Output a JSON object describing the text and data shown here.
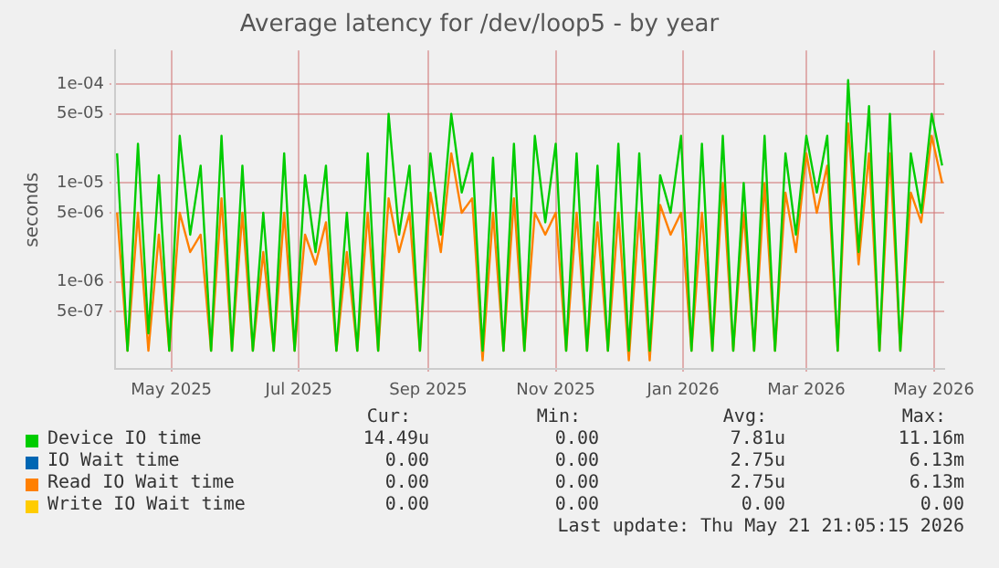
{
  "chart_data": {
    "type": "line",
    "title": "Average latency for /dev/loop5 - by year",
    "ylabel": "seconds",
    "log": "y",
    "grid": true,
    "legend": "bottom",
    "marker": "none",
    "line_style": "solid",
    "ylim": [
      1.3e-07,
      0.00022
    ],
    "yticks": [
      {
        "value": 5e-07,
        "label": "5e-07"
      },
      {
        "value": 1e-06,
        "label": "1e-06"
      },
      {
        "value": 5e-06,
        "label": "5e-06"
      },
      {
        "value": 1e-05,
        "label": "1e-05"
      },
      {
        "value": 5e-05,
        "label": "5e-05"
      },
      {
        "value": 0.0001,
        "label": "1e-04"
      }
    ],
    "xlim": [
      "2025-04-04",
      "2026-05-06"
    ],
    "xticks": [
      {
        "value": "2025-05-01",
        "label": "May 2025"
      },
      {
        "value": "2025-07-01",
        "label": "Jul 2025"
      },
      {
        "value": "2025-09-01",
        "label": "Sep 2025"
      },
      {
        "value": "2025-11-01",
        "label": "Nov 2025"
      },
      {
        "value": "2026-01-01",
        "label": "Jan 2026"
      },
      {
        "value": "2026-03-01",
        "label": "Mar 2026"
      },
      {
        "value": "2026-05-01",
        "label": "May 2026"
      }
    ],
    "x": [
      "2025-04-05",
      "2025-04-10",
      "2025-04-15",
      "2025-04-20",
      "2025-04-25",
      "2025-04-30",
      "2025-05-05",
      "2025-05-10",
      "2025-05-15",
      "2025-05-20",
      "2025-05-25",
      "2025-05-30",
      "2025-06-04",
      "2025-06-09",
      "2025-06-14",
      "2025-06-19",
      "2025-06-24",
      "2025-06-29",
      "2025-07-04",
      "2025-07-09",
      "2025-07-14",
      "2025-07-19",
      "2025-07-24",
      "2025-07-29",
      "2025-08-03",
      "2025-08-08",
      "2025-08-13",
      "2025-08-18",
      "2025-08-23",
      "2025-08-28",
      "2025-09-02",
      "2025-09-07",
      "2025-09-12",
      "2025-09-17",
      "2025-09-22",
      "2025-09-27",
      "2025-10-02",
      "2025-10-07",
      "2025-10-12",
      "2025-10-17",
      "2025-10-22",
      "2025-10-27",
      "2025-11-01",
      "2025-11-06",
      "2025-11-11",
      "2025-11-16",
      "2025-11-21",
      "2025-11-26",
      "2025-12-01",
      "2025-12-06",
      "2025-12-11",
      "2025-12-16",
      "2025-12-21",
      "2025-12-26",
      "2025-12-31",
      "2026-01-05",
      "2026-01-10",
      "2026-01-15",
      "2026-01-20",
      "2026-01-25",
      "2026-01-30",
      "2026-02-04",
      "2026-02-09",
      "2026-02-14",
      "2026-02-19",
      "2026-02-24",
      "2026-03-01",
      "2026-03-06",
      "2026-03-11",
      "2026-03-16",
      "2026-03-21",
      "2026-03-26",
      "2026-03-31",
      "2026-04-05",
      "2026-04-10",
      "2026-04-15",
      "2026-04-20",
      "2026-04-25",
      "2026-04-30",
      "2026-05-05"
    ],
    "series": [
      {
        "name": "Device IO time",
        "color": "#00cc00",
        "values": [
          2e-05,
          2e-07,
          2.5e-05,
          3e-07,
          1.2e-05,
          2e-07,
          3e-05,
          3e-06,
          1.5e-05,
          2e-07,
          3e-05,
          2e-07,
          1.5e-05,
          2e-07,
          5e-06,
          2e-07,
          2e-05,
          2e-07,
          1.2e-05,
          2e-06,
          1.5e-05,
          2e-07,
          5e-06,
          2e-07,
          2e-05,
          2e-07,
          5e-05,
          3e-06,
          1.5e-05,
          2e-07,
          2e-05,
          3e-06,
          5e-05,
          8e-06,
          2e-05,
          2e-07,
          1.8e-05,
          2e-07,
          2.5e-05,
          2e-07,
          3e-05,
          4e-06,
          2.5e-05,
          2e-07,
          2e-05,
          2e-07,
          1.5e-05,
          2e-07,
          2.5e-05,
          2e-07,
          2e-05,
          2e-07,
          1.2e-05,
          5e-06,
          3e-05,
          2e-07,
          2.5e-05,
          2e-07,
          3e-05,
          2e-07,
          1e-05,
          2e-07,
          3e-05,
          2e-07,
          2e-05,
          3e-06,
          3e-05,
          8e-06,
          3e-05,
          2e-07,
          0.00011,
          2e-06,
          6e-05,
          2e-07,
          5e-05,
          2e-07,
          2e-05,
          5e-06,
          5e-05,
          1.5e-05
        ]
      },
      {
        "name": "IO Wait time",
        "color": "#0066b3",
        "values": [
          null,
          null,
          null,
          null,
          null,
          null,
          null,
          null,
          null,
          null,
          null,
          null,
          null,
          null,
          null,
          null,
          null,
          null,
          null,
          null,
          null,
          null,
          null,
          null,
          null,
          null,
          null,
          null,
          null,
          null,
          null,
          null,
          null,
          null,
          null,
          null,
          null,
          null,
          null,
          null,
          null,
          null,
          null,
          null,
          null,
          null,
          null,
          null,
          null,
          null,
          null,
          null,
          null,
          null,
          null,
          null,
          null,
          null,
          null,
          null,
          null,
          null,
          null,
          null,
          null,
          null,
          null,
          null,
          null,
          null,
          null,
          null,
          null,
          null,
          null,
          null,
          null,
          null,
          null,
          null
        ]
      },
      {
        "name": "Read IO Wait time",
        "color": "#ff8000",
        "values": [
          5e-06,
          2e-07,
          5e-06,
          2e-07,
          3e-06,
          2e-07,
          5e-06,
          2e-06,
          3e-06,
          2e-07,
          7e-06,
          2e-07,
          5e-06,
          2e-07,
          2e-06,
          2e-07,
          5e-06,
          2e-07,
          3e-06,
          1.5e-06,
          4e-06,
          2e-07,
          2e-06,
          2e-07,
          5e-06,
          2e-07,
          7e-06,
          2e-06,
          5e-06,
          2e-07,
          8e-06,
          2e-06,
          2e-05,
          5e-06,
          7e-06,
          1.6e-07,
          5e-06,
          2e-07,
          7e-06,
          2e-07,
          5e-06,
          3e-06,
          5e-06,
          2e-07,
          5e-06,
          2e-07,
          4e-06,
          2e-07,
          5e-06,
          1.6e-07,
          5e-06,
          1.6e-07,
          6e-06,
          3e-06,
          5e-06,
          2e-07,
          5e-06,
          2e-07,
          1e-05,
          2e-07,
          5e-06,
          2e-07,
          1e-05,
          2e-07,
          8e-06,
          2e-06,
          2e-05,
          5e-06,
          1.5e-05,
          2e-07,
          4e-05,
          1.5e-06,
          2e-05,
          2e-07,
          2e-05,
          2e-07,
          8e-06,
          4e-06,
          3e-05,
          1e-05
        ]
      },
      {
        "name": "Write IO Wait time",
        "color": "#ffcc00",
        "values": [
          null,
          null,
          null,
          null,
          null,
          null,
          null,
          null,
          null,
          null,
          null,
          null,
          null,
          null,
          null,
          null,
          null,
          null,
          null,
          null,
          null,
          null,
          null,
          null,
          null,
          null,
          null,
          null,
          null,
          null,
          null,
          null,
          null,
          null,
          null,
          null,
          null,
          null,
          null,
          null,
          null,
          null,
          null,
          null,
          null,
          null,
          null,
          null,
          null,
          null,
          null,
          null,
          null,
          null,
          null,
          null,
          null,
          null,
          null,
          null,
          null,
          null,
          null,
          null,
          null,
          null,
          null,
          null,
          null,
          null,
          null,
          null,
          null,
          null,
          null,
          null,
          null,
          null,
          null,
          null
        ]
      }
    ],
    "annotations": [
      "Cur:",
      "Min:",
      "Avg:",
      "Max:",
      "14.49u",
      "0.00",
      "7.81u",
      "11.16m",
      "0.00",
      "0.00",
      "2.75u",
      "6.13m",
      "0.00",
      "0.00",
      "2.75u",
      "6.13m",
      "0.00",
      "0.00",
      "0.00",
      "0.00",
      "Last update: Thu May 21 21:05:15 2026"
    ]
  }
}
